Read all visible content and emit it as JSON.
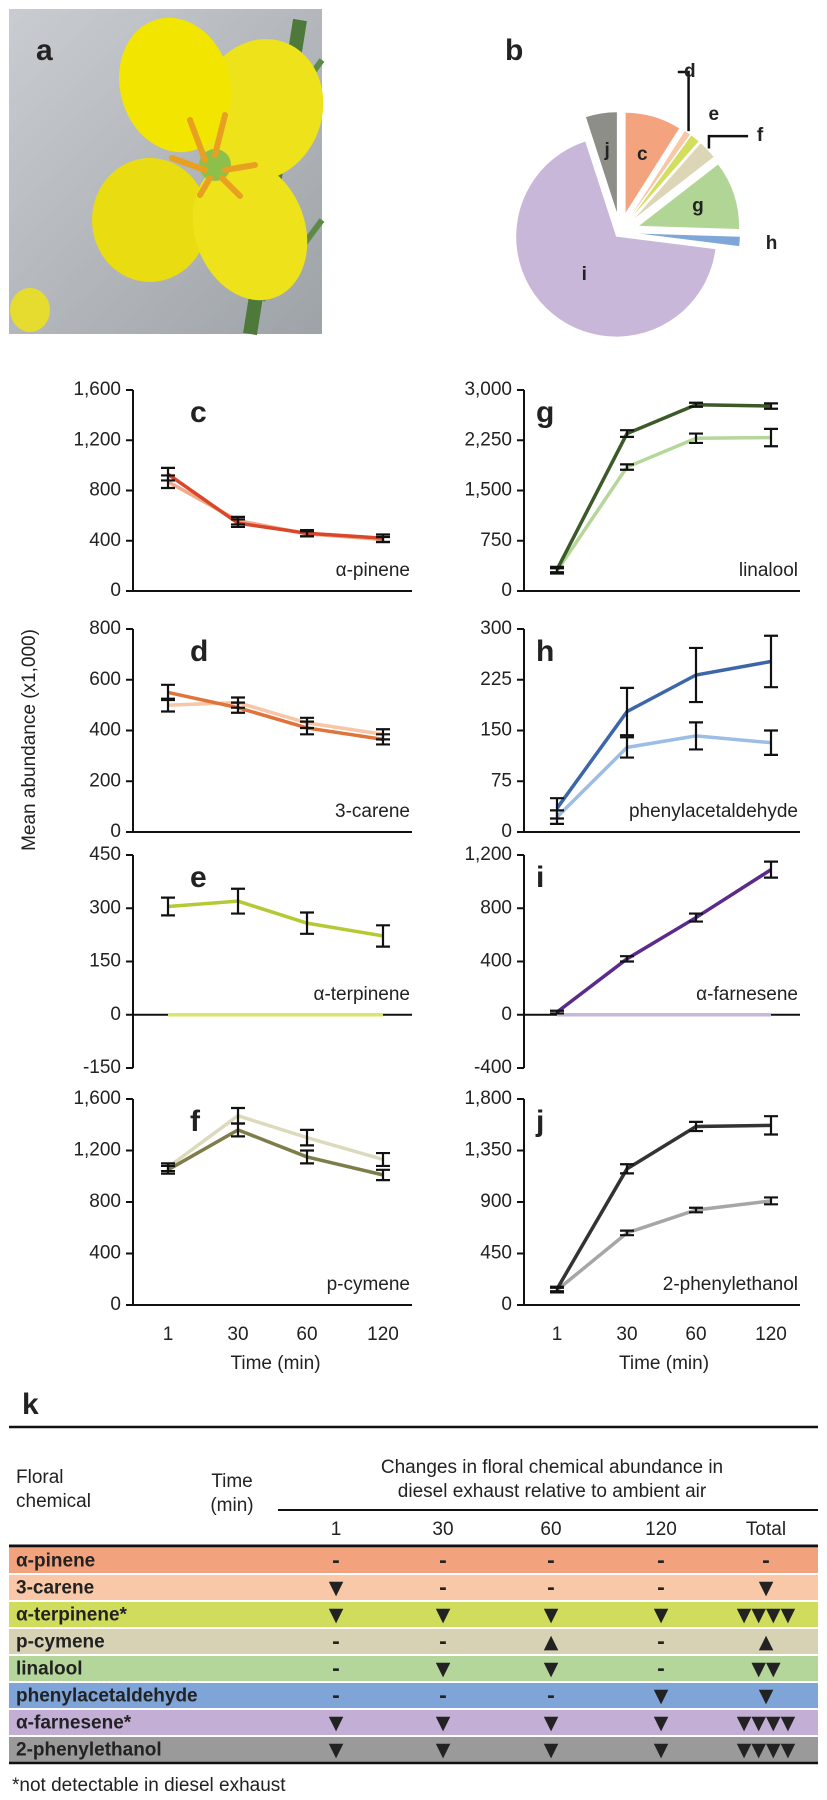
{
  "panel_a": {
    "label": "a"
  },
  "y_axis_label": "Mean abundance (x1,000)",
  "chart_data": [
    {
      "type": "pie",
      "panel": "b",
      "categories": [
        "c",
        "d",
        "e",
        "f",
        "g",
        "h",
        "i",
        "j"
      ],
      "values": [
        9,
        1,
        1.5,
        3,
        11,
        1.5,
        68,
        5
      ],
      "colors": [
        "#f4a37f",
        "#f7c7a6",
        "#d3de5e",
        "#dcd5b6",
        "#b0d594",
        "#7fa6d8",
        "#c9b7da",
        "#8e8e88"
      ]
    },
    {
      "type": "line",
      "panel": "c",
      "label": "α-pinene",
      "ylim": [
        0,
        1600
      ],
      "yticks": [
        0,
        400,
        800,
        {
          "value": 1200,
          "label": "1,200"
        },
        {
          "value": 1600,
          "label": "1,600"
        }
      ],
      "series": [
        {
          "color": "#f5a98b",
          "values": [
            870,
            560,
            455,
            410
          ],
          "errors": [
            50,
            30,
            20,
            20
          ]
        },
        {
          "color": "#d9472b",
          "values": [
            930,
            540,
            460,
            420
          ],
          "errors": [
            50,
            30,
            25,
            30
          ]
        }
      ]
    },
    {
      "type": "line",
      "panel": "d",
      "label": "3-carene",
      "ylim": [
        0,
        800
      ],
      "yticks": [
        0,
        200,
        400,
        600,
        800
      ],
      "series": [
        {
          "color": "#f6c6a6",
          "values": [
            500,
            510,
            430,
            385
          ],
          "errors": [
            25,
            20,
            20,
            20
          ]
        },
        {
          "color": "#e0733a",
          "values": [
            550,
            490,
            410,
            365
          ],
          "errors": [
            30,
            20,
            25,
            20
          ]
        }
      ]
    },
    {
      "type": "line",
      "panel": "e",
      "label": "α-terpinene",
      "ylim": [
        -150,
        450
      ],
      "yticks": [
        -150,
        0,
        150,
        300,
        450
      ],
      "series": [
        {
          "color": "#d8e66e",
          "values": [
            0,
            0,
            0,
            0
          ]
        },
        {
          "color": "#b5c934",
          "values": [
            305,
            320,
            258,
            222
          ],
          "errors": [
            25,
            35,
            30,
            30
          ]
        }
      ]
    },
    {
      "type": "line",
      "panel": "f",
      "label": "p-cymene",
      "ylim": [
        0,
        1600
      ],
      "yticks": [
        0,
        400,
        800,
        {
          "value": 1200,
          "label": "1,200"
        },
        {
          "value": 1600,
          "label": "1,600"
        }
      ],
      "categories": [
        "1",
        "30",
        "60",
        "120"
      ],
      "xlabel": "Time (min)",
      "series": [
        {
          "color": "#ddd9bc",
          "values": [
            1070,
            1470,
            1300,
            1130
          ],
          "errors": [
            30,
            60,
            60,
            50
          ]
        },
        {
          "color": "#7e7d4a",
          "values": [
            1050,
            1360,
            1150,
            1010
          ],
          "errors": [
            30,
            50,
            50,
            40
          ]
        }
      ]
    },
    {
      "type": "line",
      "panel": "g",
      "label": "linalool",
      "ylim": [
        0,
        3000
      ],
      "yticks": [
        0,
        750,
        {
          "value": 1500,
          "label": "1,500"
        },
        {
          "value": 2250,
          "label": "2,250"
        },
        {
          "value": 3000,
          "label": "3,000"
        }
      ],
      "series": [
        {
          "color": "#b5d79a",
          "values": [
            300,
            1850,
            2280,
            2290
          ],
          "errors": [
            40,
            40,
            70,
            130
          ]
        },
        {
          "color": "#3b5a28",
          "values": [
            320,
            2350,
            2780,
            2760
          ],
          "errors": [
            40,
            50,
            30,
            40
          ]
        }
      ]
    },
    {
      "type": "line",
      "panel": "h",
      "label": "phenylacetaldehyde",
      "ylim": [
        0,
        300
      ],
      "yticks": [
        0,
        75,
        150,
        225,
        300
      ],
      "series": [
        {
          "color": "#9dbde6",
          "values": [
            22,
            125,
            142,
            132
          ],
          "errors": [
            10,
            15,
            20,
            18
          ]
        },
        {
          "color": "#3b66a8",
          "values": [
            35,
            178,
            232,
            252
          ],
          "errors": [
            15,
            35,
            40,
            38
          ]
        }
      ]
    },
    {
      "type": "line",
      "panel": "i",
      "label": "α-farnesene",
      "ylim": [
        -400,
        1200
      ],
      "yticks": [
        -400,
        0,
        400,
        800,
        {
          "value": 1200,
          "label": "1,200"
        }
      ],
      "series": [
        {
          "color": "#c9b6dc",
          "values": [
            0,
            0,
            0,
            0
          ]
        },
        {
          "color": "#5b2a8a",
          "values": [
            20,
            420,
            730,
            1090
          ],
          "errors": [
            10,
            20,
            30,
            60
          ]
        }
      ]
    },
    {
      "type": "line",
      "panel": "j",
      "label": "2-phenylethanol",
      "ylim": [
        0,
        1800
      ],
      "yticks": [
        0,
        450,
        900,
        {
          "value": 1350,
          "label": "1,350"
        },
        {
          "value": 1800,
          "label": "1,800"
        }
      ],
      "categories": [
        "1",
        "30",
        "60",
        "120"
      ],
      "xlabel": "Time (min)",
      "series": [
        {
          "color": "#a6a6a6",
          "values": [
            130,
            630,
            830,
            910
          ],
          "errors": [
            20,
            20,
            20,
            30
          ]
        },
        {
          "color": "#333333",
          "values": [
            140,
            1190,
            1560,
            1570
          ],
          "errors": [
            20,
            40,
            40,
            80
          ]
        }
      ]
    }
  ],
  "table": {
    "label": "k",
    "chemical_header": [
      "Floral",
      "chemical"
    ],
    "time_header": [
      "Time",
      "(min)"
    ],
    "group_header": [
      "Changes in floral chemical abundance in",
      "diesel exhaust relative to ambient air"
    ],
    "columns": [
      "1",
      "30",
      "60",
      "120",
      "Total"
    ],
    "rows": [
      {
        "name": "α-pinene",
        "color": "#f2a37d",
        "cells": [
          "-",
          "-",
          "-",
          "-",
          "-"
        ]
      },
      {
        "name": "3-carene",
        "color": "#f8c8a8",
        "cells": [
          "▼",
          "-",
          "-",
          "-",
          "▼"
        ]
      },
      {
        "name": "α-terpinene*",
        "color": "#cfdc5c",
        "cells": [
          "▼",
          "▼",
          "▼",
          "▼",
          "▼▼▼▼"
        ]
      },
      {
        "name": "p-cymene",
        "color": "#d8d2b4",
        "cells": [
          "-",
          "-",
          "▲",
          "-",
          "▲"
        ]
      },
      {
        "name": "linalool",
        "color": "#b4d69a",
        "cells": [
          "-",
          "▼",
          "▼",
          "-",
          "▼▼"
        ]
      },
      {
        "name": "phenylacetaldehyde",
        "color": "#7ea4d8",
        "cells": [
          "-",
          "-",
          "-",
          "▼",
          "▼"
        ]
      },
      {
        "name": "α-farnesene*",
        "color": "#c3aed6",
        "cells": [
          "▼",
          "▼",
          "▼",
          "▼",
          "▼▼▼▼"
        ]
      },
      {
        "name": "2-phenylethanol",
        "color": "#9a9a9a",
        "cells": [
          "▼",
          "▼",
          "▼",
          "▼",
          "▼▼▼▼"
        ]
      }
    ],
    "footnote": "*not detectable in diesel exhaust"
  }
}
